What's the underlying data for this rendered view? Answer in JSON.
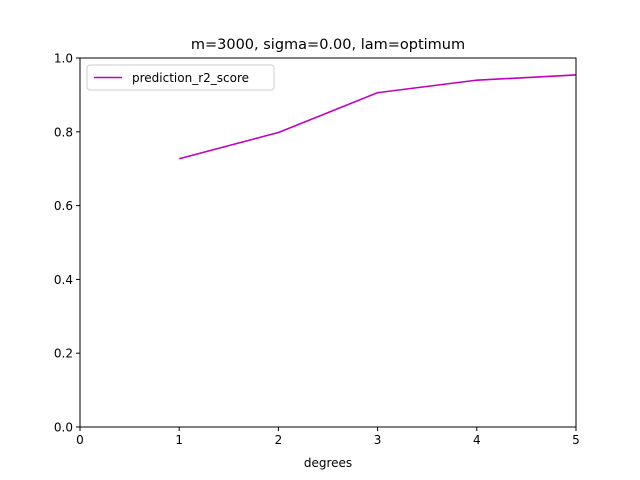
{
  "chart_data": {
    "type": "line",
    "title": "m=3000, sigma=0.00, lam=optimum",
    "xlabel": "degrees",
    "ylabel": "",
    "xlim": [
      0,
      5
    ],
    "ylim": [
      0,
      1
    ],
    "xticks": [
      0,
      1,
      2,
      3,
      4,
      5
    ],
    "yticks": [
      0.0,
      0.2,
      0.4,
      0.6,
      0.8,
      1.0
    ],
    "xtick_labels": [
      "0",
      "1",
      "2",
      "3",
      "4",
      "5"
    ],
    "ytick_labels": [
      "0.0",
      "0.2",
      "0.4",
      "0.6",
      "0.8",
      "1.0"
    ],
    "grid": false,
    "legend_position": "top-left",
    "series": [
      {
        "name": "prediction_r2_score",
        "color": "#bf00bf",
        "x": [
          1,
          2,
          3,
          4,
          5
        ],
        "y": [
          0.727,
          0.798,
          0.906,
          0.94,
          0.954
        ]
      }
    ]
  }
}
